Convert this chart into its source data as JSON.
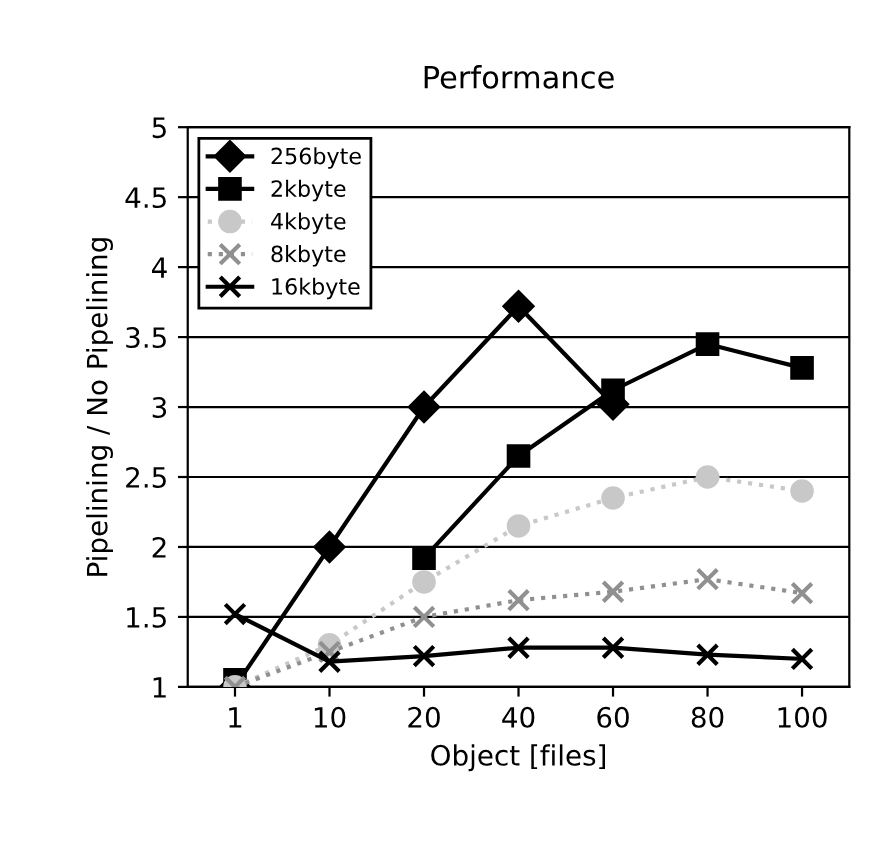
{
  "chart_data": {
    "type": "line",
    "title": "Performance",
    "xlabel": "Object [files]",
    "ylabel": "Pipelining / No Pipelining",
    "categories": [
      "1",
      "10",
      "20",
      "40",
      "60",
      "80",
      "100"
    ],
    "series": [
      {
        "name": "256byte",
        "color": "#000000",
        "marker": "diamond",
        "line_style": "solid",
        "values": [
          1.0,
          2.0,
          3.0,
          3.72,
          3.02,
          null,
          null
        ]
      },
      {
        "name": "2kbyte",
        "color": "#000000",
        "marker": "square",
        "line_style": "solid",
        "values": [
          1.05,
          null,
          1.92,
          2.65,
          3.12,
          3.45,
          3.28
        ]
      },
      {
        "name": "4kbyte",
        "color": "#c8c8c8",
        "marker": "circle",
        "line_style": "dotted",
        "values": [
          1.0,
          1.3,
          1.75,
          2.15,
          2.35,
          2.5,
          2.4
        ]
      },
      {
        "name": "8kbyte",
        "color": "#909090",
        "marker": "cross",
        "line_style": "dotted",
        "values": [
          1.0,
          1.25,
          1.5,
          1.62,
          1.68,
          1.77,
          1.67
        ]
      },
      {
        "name": "16kbyte",
        "color": "#000000",
        "marker": "cross",
        "line_style": "solid",
        "values": [
          1.52,
          1.18,
          1.22,
          1.28,
          1.28,
          1.23,
          1.2
        ]
      }
    ],
    "ylim": [
      1,
      5
    ],
    "yticks": [
      1,
      1.5,
      2,
      2.5,
      3,
      3.5,
      4,
      4.5,
      5
    ],
    "grid": "y",
    "legend": "top left"
  }
}
